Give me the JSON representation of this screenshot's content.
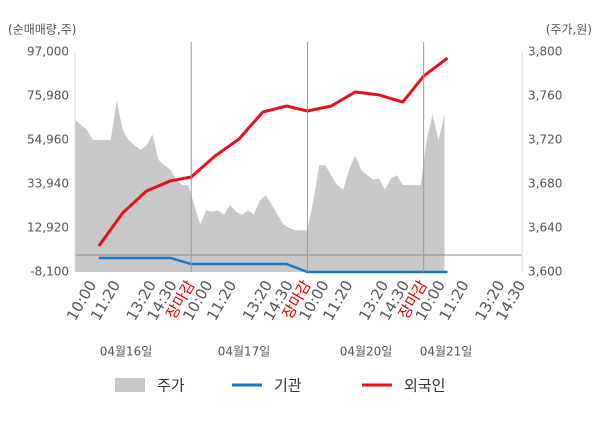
{
  "chart_data": {
    "type": "combo",
    "y_axis_label": "(순매매량,주)",
    "y2_axis_label": "(주가,원)",
    "xlim": [
      0,
      150
    ],
    "xticks": [
      {
        "value": 6,
        "label": "10:00"
      },
      {
        "value": 14,
        "label": "11:20"
      },
      {
        "value": 26,
        "label": "13:20"
      },
      {
        "value": 33,
        "label": "14:30"
      },
      {
        "value": 39,
        "label": "장마감"
      },
      {
        "value": 45,
        "label": "10:00"
      },
      {
        "value": 53,
        "label": "11:20"
      },
      {
        "value": 65,
        "label": "13:20"
      },
      {
        "value": 72,
        "label": "14:30"
      },
      {
        "value": 78,
        "label": "장마감"
      },
      {
        "value": 84,
        "label": "10:00"
      },
      {
        "value": 92,
        "label": "11:20"
      },
      {
        "value": 104,
        "label": "13:20"
      },
      {
        "value": 111,
        "label": "14:30"
      },
      {
        "value": 117,
        "label": "장마감"
      },
      {
        "value": 123,
        "label": "10:00"
      },
      {
        "value": 131,
        "label": "11:20"
      },
      {
        "value": 143,
        "label": "13:20"
      },
      {
        "value": 150,
        "label": "14:30"
      }
    ],
    "session_breaks": [
      39,
      78,
      117
    ],
    "close_color": "#e00000",
    "date_labels": [
      "04월16일",
      "04월17일",
      "04월20일",
      "04월21일"
    ],
    "ylim": [
      -8100,
      97000
    ],
    "yticks": [
      {
        "value": 97000,
        "label": "97,000"
      },
      {
        "value": 75980,
        "label": "75,980"
      },
      {
        "value": 54960,
        "label": "54,960"
      },
      {
        "value": 33940,
        "label": "33,940"
      },
      {
        "value": 12920,
        "label": "12,920"
      },
      {
        "value": -8100,
        "label": "-8,100"
      }
    ],
    "y2lim": [
      3600,
      3800
    ],
    "y2ticks": [
      {
        "value": 3800,
        "label": "3,800"
      },
      {
        "value": 3760,
        "label": "3,760"
      },
      {
        "value": 3720,
        "label": "3,720"
      },
      {
        "value": 3680,
        "label": "3,680"
      },
      {
        "value": 3640,
        "label": "3,640"
      },
      {
        "value": 3600,
        "label": "3,600"
      }
    ],
    "series": [
      {
        "name": "주가",
        "kind": "area",
        "axis": "y2",
        "color": "#c8c8c8",
        "x": [
          0,
          2,
          4,
          6,
          8,
          10,
          12,
          14,
          16,
          18,
          20,
          22,
          24,
          26,
          28,
          30,
          32,
          34,
          36,
          38,
          40,
          42,
          44,
          46,
          48,
          50,
          52,
          54,
          56,
          58,
          60,
          62,
          64,
          66,
          68,
          70,
          72,
          74,
          76,
          78,
          80,
          82,
          84,
          86,
          88,
          90,
          92,
          94,
          96,
          98,
          100,
          102,
          104,
          106,
          108,
          110,
          112,
          114,
          116,
          118,
          120,
          122,
          124
        ],
        "values": [
          3738,
          3734,
          3729,
          3720,
          3720,
          3720,
          3720,
          3756,
          3729,
          3720,
          3715,
          3711,
          3715,
          3725,
          3702,
          3697,
          3693,
          3684,
          3679,
          3679,
          3661,
          3643,
          3656,
          3655,
          3656,
          3652,
          3661,
          3655,
          3652,
          3656,
          3652,
          3665,
          3670,
          3661,
          3652,
          3643,
          3640,
          3638,
          3638,
          3638,
          3665,
          3697,
          3697,
          3688,
          3679,
          3675,
          3693,
          3706,
          3693,
          3688,
          3684,
          3685,
          3675,
          3685,
          3688,
          3679,
          3679,
          3679,
          3679,
          3720,
          3743,
          3720,
          3743
        ]
      },
      {
        "name": "기관",
        "kind": "line",
        "color": "#1a78c8",
        "x": [
          8,
          16,
          24,
          32,
          39,
          47,
          55,
          63,
          71,
          78,
          86,
          94,
          102,
          110,
          117,
          125
        ],
        "values": [
          -1400,
          -1400,
          -1400,
          -1400,
          -4300,
          -4300,
          -4300,
          -4300,
          -4300,
          -8100,
          -8100,
          -8100,
          -8100,
          -8100,
          -8100,
          -8100
        ]
      },
      {
        "name": "외국인",
        "kind": "line",
        "color": "#e8101a",
        "x": [
          8,
          16,
          24,
          32,
          39,
          47,
          55,
          63,
          71,
          78,
          86,
          94,
          102,
          110,
          117,
          125
        ],
        "values": [
          4300,
          20100,
          30600,
          35400,
          37300,
          47300,
          55400,
          68300,
          71200,
          68800,
          71200,
          77900,
          76500,
          73100,
          85500,
          94100
        ]
      }
    ]
  }
}
